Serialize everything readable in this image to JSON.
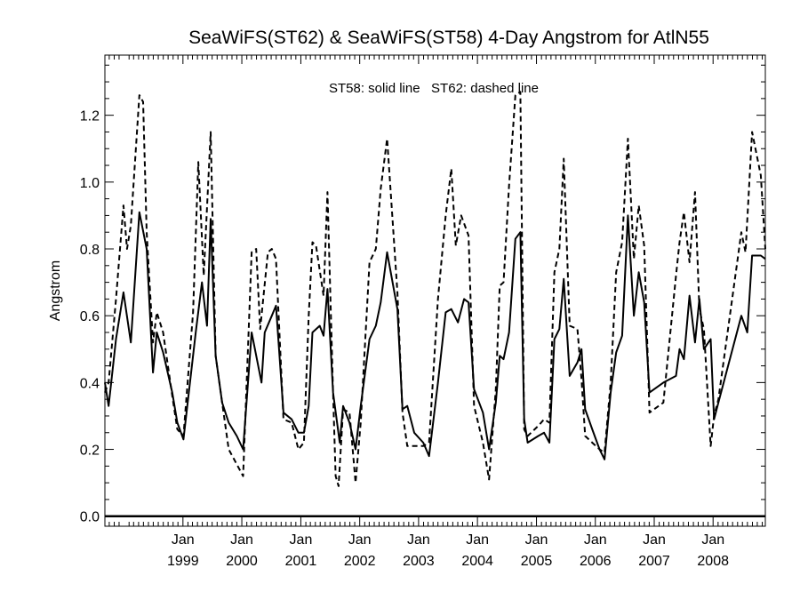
{
  "chart_data": {
    "type": "line",
    "title": "SeaWiFS(ST62) & SeaWiFS(ST58) 4-Day Angstrom for AtlN55",
    "annotation": "ST58: solid line   ST62: dashed line",
    "xlabel": "",
    "ylabel": "Angstrom",
    "xlim": [
      "1997-09-04",
      "2008-11-20"
    ],
    "ylim": [
      -0.03,
      1.38
    ],
    "y_ticks": [
      0.0,
      0.2,
      0.4,
      0.6,
      0.8,
      1.0,
      1.2
    ],
    "y_tick_labels": [
      "0.0",
      "0.2",
      "0.4",
      "0.6",
      "0.8",
      "1.0",
      "1.2"
    ],
    "x_ticks": [
      {
        "date": "1999-01-01",
        "month": "Jan",
        "year": "1999"
      },
      {
        "date": "2000-01-01",
        "month": "Jan",
        "year": "2000"
      },
      {
        "date": "2001-01-01",
        "month": "Jan",
        "year": "2001"
      },
      {
        "date": "2002-01-01",
        "month": "Jan",
        "year": "2002"
      },
      {
        "date": "2003-01-01",
        "month": "Jan",
        "year": "2003"
      },
      {
        "date": "2004-01-01",
        "month": "Jan",
        "year": "2004"
      },
      {
        "date": "2005-01-01",
        "month": "Jan",
        "year": "2005"
      },
      {
        "date": "2006-01-01",
        "month": "Jan",
        "year": "2006"
      },
      {
        "date": "2007-01-01",
        "month": "Jan",
        "year": "2007"
      },
      {
        "date": "2008-01-01",
        "month": "Jan",
        "year": "2008"
      }
    ],
    "zero_line": 0.0,
    "series": [
      {
        "style": "solid",
        "color": "#000000",
        "points": [
          [
            "1997-09-04",
            0.4
          ],
          [
            "1997-09-27",
            0.33
          ],
          [
            "1997-11-12",
            0.53
          ],
          [
            "1997-12-28",
            0.67
          ],
          [
            "1998-02-12",
            0.52
          ],
          [
            "1998-04-06",
            0.91
          ],
          [
            "1998-05-21",
            0.8
          ],
          [
            "1998-06-29",
            0.43
          ],
          [
            "1998-07-23",
            0.55
          ],
          [
            "1998-08-31",
            0.49
          ],
          [
            "1998-10-27",
            0.37
          ],
          [
            "1998-11-27",
            0.28
          ],
          [
            "1999-01-04",
            0.23
          ],
          [
            "1999-03-21",
            0.55
          ],
          [
            "1999-04-29",
            0.7
          ],
          [
            "1999-05-30",
            0.57
          ],
          [
            "1999-06-22",
            0.89
          ],
          [
            "1999-07-23",
            0.48
          ],
          [
            "1999-09-01",
            0.34
          ],
          [
            "1999-10-12",
            0.28
          ],
          [
            "1999-12-01",
            0.24
          ],
          [
            "2000-01-09",
            0.2
          ],
          [
            "2000-03-02",
            0.55
          ],
          [
            "2000-05-02",
            0.4
          ],
          [
            "2000-05-22",
            0.55
          ],
          [
            "2000-07-05",
            0.6
          ],
          [
            "2000-07-31",
            0.63
          ],
          [
            "2000-09-15",
            0.31
          ],
          [
            "2000-11-05",
            0.29
          ],
          [
            "2000-12-17",
            0.25
          ],
          [
            "2001-01-20",
            0.25
          ],
          [
            "2001-02-19",
            0.33
          ],
          [
            "2001-03-14",
            0.55
          ],
          [
            "2001-04-28",
            0.57
          ],
          [
            "2001-05-22",
            0.54
          ],
          [
            "2001-06-15",
            0.68
          ],
          [
            "2001-07-20",
            0.37
          ],
          [
            "2001-08-30",
            0.22
          ],
          [
            "2001-09-20",
            0.33
          ],
          [
            "2001-10-30",
            0.28
          ],
          [
            "2001-12-06",
            0.2
          ],
          [
            "2002-01-07",
            0.33
          ],
          [
            "2002-03-03",
            0.53
          ],
          [
            "2002-04-11",
            0.57
          ],
          [
            "2002-05-11",
            0.64
          ],
          [
            "2002-06-20",
            0.79
          ],
          [
            "2002-08-23",
            0.62
          ],
          [
            "2002-09-23",
            0.32
          ],
          [
            "2002-10-23",
            0.33
          ],
          [
            "2002-12-05",
            0.25
          ],
          [
            "2003-01-30",
            0.22
          ],
          [
            "2003-03-07",
            0.18
          ],
          [
            "2003-05-01",
            0.4
          ],
          [
            "2003-06-18",
            0.61
          ],
          [
            "2003-07-23",
            0.62
          ],
          [
            "2003-09-02",
            0.58
          ],
          [
            "2003-10-10",
            0.65
          ],
          [
            "2003-11-07",
            0.64
          ],
          [
            "2003-12-11",
            0.38
          ],
          [
            "2004-02-04",
            0.31
          ],
          [
            "2004-03-13",
            0.2
          ],
          [
            "2004-04-24",
            0.34
          ],
          [
            "2004-05-18",
            0.48
          ],
          [
            "2004-06-11",
            0.47
          ],
          [
            "2004-07-15",
            0.55
          ],
          [
            "2004-08-23",
            0.83
          ],
          [
            "2004-09-23",
            0.85
          ],
          [
            "2004-10-17",
            0.29
          ],
          [
            "2004-11-07",
            0.22
          ],
          [
            "2005-01-12",
            0.24
          ],
          [
            "2005-02-17",
            0.25
          ],
          [
            "2005-03-22",
            0.22
          ],
          [
            "2005-04-22",
            0.53
          ],
          [
            "2005-05-23",
            0.56
          ],
          [
            "2005-06-19",
            0.71
          ],
          [
            "2005-07-26",
            0.42
          ],
          [
            "2005-09-12",
            0.46
          ],
          [
            "2005-10-07",
            0.5
          ],
          [
            "2005-10-30",
            0.32
          ],
          [
            "2005-12-13",
            0.26
          ],
          [
            "2006-01-27",
            0.2
          ],
          [
            "2006-02-27",
            0.17
          ],
          [
            "2006-04-06",
            0.37
          ],
          [
            "2006-05-10",
            0.49
          ],
          [
            "2006-06-16",
            0.54
          ],
          [
            "2006-07-22",
            0.9
          ],
          [
            "2006-08-28",
            0.6
          ],
          [
            "2006-09-27",
            0.73
          ],
          [
            "2006-10-31",
            0.64
          ],
          [
            "2006-12-03",
            0.37
          ],
          [
            "2007-02-27",
            0.4
          ],
          [
            "2007-05-16",
            0.42
          ],
          [
            "2007-06-07",
            0.5
          ],
          [
            "2007-07-04",
            0.47
          ],
          [
            "2007-08-08",
            0.66
          ],
          [
            "2007-09-11",
            0.52
          ],
          [
            "2007-10-08",
            0.65
          ],
          [
            "2007-11-05",
            0.5
          ],
          [
            "2007-12-17",
            0.53
          ],
          [
            "2008-01-07",
            0.29
          ],
          [
            "2008-02-03",
            0.34
          ],
          [
            "2008-06-24",
            0.6
          ],
          [
            "2008-07-31",
            0.55
          ],
          [
            "2008-08-30",
            0.78
          ],
          [
            "2008-10-23",
            0.78
          ],
          [
            "2008-11-20",
            0.77
          ]
        ]
      },
      {
        "style": "dashed",
        "color": "#000000",
        "points": [
          [
            "1997-09-04",
            0.37
          ],
          [
            "1997-09-27",
            0.4
          ],
          [
            "1997-11-12",
            0.65
          ],
          [
            "1997-12-28",
            0.93
          ],
          [
            "1998-01-19",
            0.8
          ],
          [
            "1998-02-12",
            0.87
          ],
          [
            "1998-04-06",
            1.26
          ],
          [
            "1998-04-29",
            1.24
          ],
          [
            "1998-05-21",
            0.85
          ],
          [
            "1998-06-29",
            0.52
          ],
          [
            "1998-07-23",
            0.61
          ],
          [
            "1998-08-31",
            0.55
          ],
          [
            "1998-10-27",
            0.36
          ],
          [
            "1998-11-27",
            0.26
          ],
          [
            "1999-01-04",
            0.24
          ],
          [
            "1999-03-05",
            0.61
          ],
          [
            "1999-04-06",
            1.06
          ],
          [
            "1999-05-10",
            0.72
          ],
          [
            "1999-06-22",
            1.15
          ],
          [
            "1999-07-23",
            0.48
          ],
          [
            "1999-09-01",
            0.34
          ],
          [
            "1999-10-12",
            0.2
          ],
          [
            "2000-01-09",
            0.12
          ],
          [
            "2000-03-02",
            0.79
          ],
          [
            "2000-03-30",
            0.8
          ],
          [
            "2000-04-24",
            0.56
          ],
          [
            "2000-06-11",
            0.79
          ],
          [
            "2000-07-05",
            0.8
          ],
          [
            "2000-07-31",
            0.77
          ],
          [
            "2000-09-15",
            0.29
          ],
          [
            "2000-11-05",
            0.28
          ],
          [
            "2000-12-17",
            0.2
          ],
          [
            "2001-01-20",
            0.22
          ],
          [
            "2001-02-19",
            0.6
          ],
          [
            "2001-03-14",
            0.82
          ],
          [
            "2001-04-05",
            0.81
          ],
          [
            "2001-05-22",
            0.66
          ],
          [
            "2001-06-15",
            0.97
          ],
          [
            "2001-07-20",
            0.37
          ],
          [
            "2001-08-05",
            0.12
          ],
          [
            "2001-08-23",
            0.09
          ],
          [
            "2001-09-20",
            0.32
          ],
          [
            "2001-10-30",
            0.31
          ],
          [
            "2001-12-06",
            0.1
          ],
          [
            "2002-01-07",
            0.28
          ],
          [
            "2002-03-03",
            0.76
          ],
          [
            "2002-04-11",
            0.8
          ],
          [
            "2002-05-11",
            0.98
          ],
          [
            "2002-06-20",
            1.13
          ],
          [
            "2002-08-23",
            0.67
          ],
          [
            "2002-09-23",
            0.31
          ],
          [
            "2002-10-23",
            0.21
          ],
          [
            "2002-12-05",
            0.21
          ],
          [
            "2003-01-30",
            0.21
          ],
          [
            "2003-03-07",
            0.22
          ],
          [
            "2003-05-01",
            0.65
          ],
          [
            "2003-06-18",
            0.9
          ],
          [
            "2003-07-23",
            1.04
          ],
          [
            "2003-08-20",
            0.81
          ],
          [
            "2003-09-22",
            0.9
          ],
          [
            "2003-11-07",
            0.84
          ],
          [
            "2003-12-11",
            0.33
          ],
          [
            "2004-02-04",
            0.22
          ],
          [
            "2004-03-13",
            0.11
          ],
          [
            "2004-04-24",
            0.38
          ],
          [
            "2004-05-18",
            0.69
          ],
          [
            "2004-06-11",
            0.7
          ],
          [
            "2004-07-15",
            0.99
          ],
          [
            "2004-08-23",
            1.26
          ],
          [
            "2004-09-23",
            1.27
          ],
          [
            "2004-10-17",
            0.26
          ],
          [
            "2004-11-07",
            0.24
          ],
          [
            "2005-01-12",
            0.27
          ],
          [
            "2005-02-17",
            0.29
          ],
          [
            "2005-03-22",
            0.28
          ],
          [
            "2005-04-22",
            0.73
          ],
          [
            "2005-05-23",
            0.8
          ],
          [
            "2005-06-19",
            1.07
          ],
          [
            "2005-07-26",
            0.57
          ],
          [
            "2005-09-12",
            0.56
          ],
          [
            "2005-10-07",
            0.41
          ],
          [
            "2005-10-30",
            0.24
          ],
          [
            "2005-12-13",
            0.22
          ],
          [
            "2006-01-27",
            0.2
          ],
          [
            "2006-02-27",
            0.19
          ],
          [
            "2006-04-06",
            0.4
          ],
          [
            "2006-05-10",
            0.73
          ],
          [
            "2006-06-16",
            0.82
          ],
          [
            "2006-07-22",
            1.13
          ],
          [
            "2006-08-28",
            0.77
          ],
          [
            "2006-09-27",
            0.93
          ],
          [
            "2006-10-31",
            0.81
          ],
          [
            "2006-12-03",
            0.31
          ],
          [
            "2007-02-27",
            0.34
          ],
          [
            "2007-05-16",
            0.72
          ],
          [
            "2007-06-07",
            0.82
          ],
          [
            "2007-07-04",
            0.91
          ],
          [
            "2007-08-08",
            0.76
          ],
          [
            "2007-09-11",
            0.97
          ],
          [
            "2007-10-08",
            0.62
          ],
          [
            "2007-11-05",
            0.56
          ],
          [
            "2007-12-17",
            0.21
          ],
          [
            "2008-01-07",
            0.3
          ],
          [
            "2008-02-03",
            0.35
          ],
          [
            "2008-06-24",
            0.85
          ],
          [
            "2008-07-20",
            0.79
          ],
          [
            "2008-08-30",
            1.15
          ],
          [
            "2008-10-23",
            1.02
          ],
          [
            "2008-11-20",
            0.8
          ]
        ]
      }
    ]
  }
}
